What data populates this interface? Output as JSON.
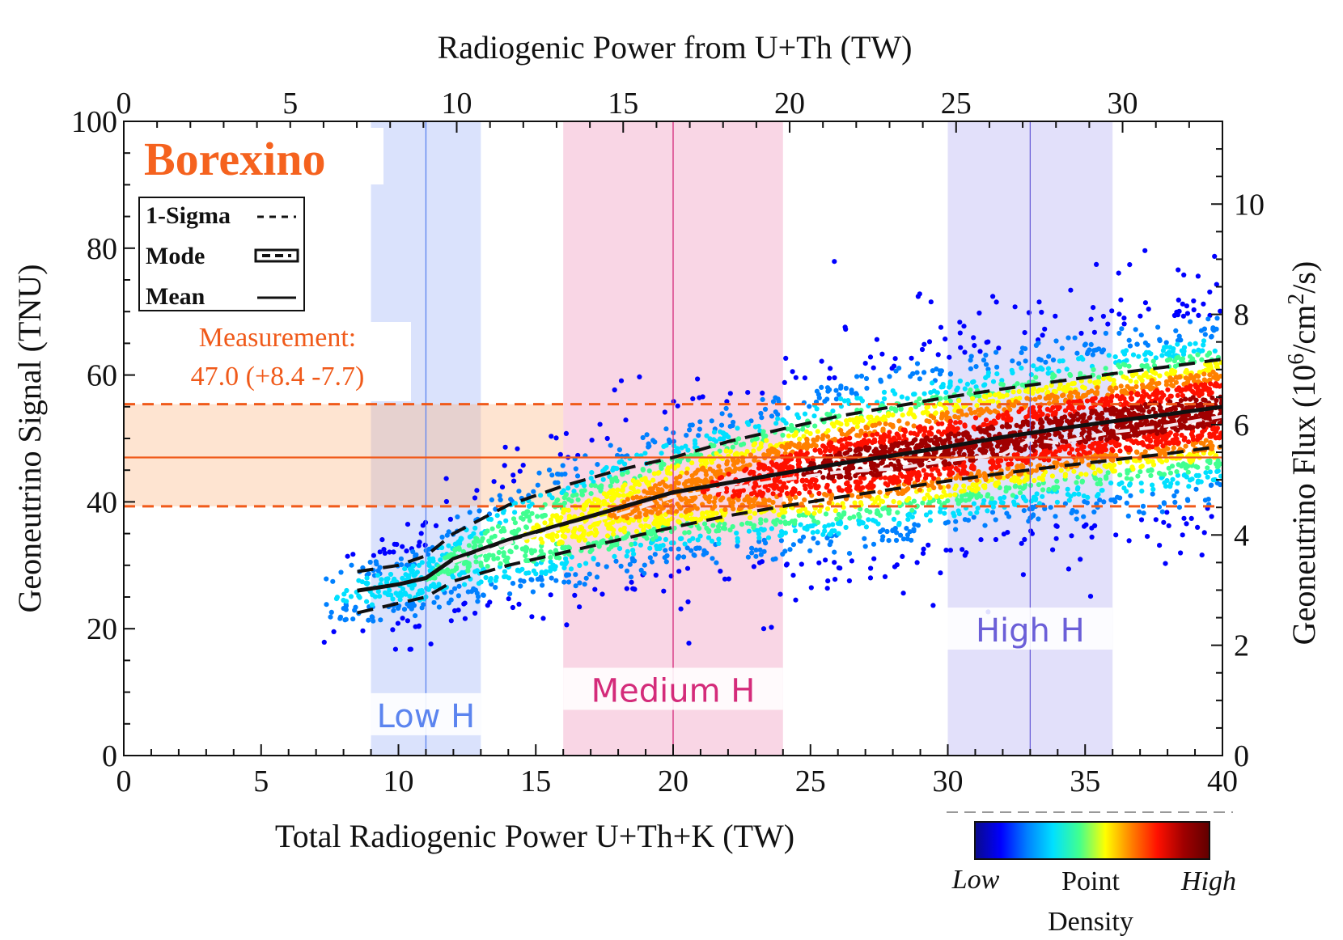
{
  "chart_data": {
    "type": "scatter",
    "experiment": "Borexino",
    "xlabel": "Total Radiogenic Power U+Th+K (TW)",
    "x2label": "Radiogenic Power from U+Th (TW)",
    "ylabel": "Geoneutrino Signal (TNU)",
    "y2label_prefix": "Geoneutrino Flux (10",
    "y2label_sup1": "6",
    "y2label_mid": "/cm",
    "y2label_sup2": "2",
    "y2label_suffix": "/s)",
    "xlim": [
      0,
      40
    ],
    "x2lim": [
      0,
      33
    ],
    "ylim": [
      0,
      100
    ],
    "y2lim": [
      0,
      11.5
    ],
    "x_ticks": [
      0,
      5,
      10,
      15,
      20,
      25,
      30,
      35,
      40
    ],
    "x2_ticks": [
      0,
      5,
      10,
      15,
      20,
      25,
      30
    ],
    "y_ticks": [
      0,
      20,
      40,
      60,
      80,
      100
    ],
    "y2_ticks": [
      0,
      2,
      4,
      6,
      8,
      10
    ],
    "legend": {
      "sigma_label": "1-Sigma",
      "mode_label": "Mode",
      "mean_label": "Mean"
    },
    "measurement": {
      "label": "Measurement:",
      "value_text": "47.0 (+8.4 -7.7)",
      "value": 47.0,
      "upper": 55.4,
      "lower": 39.3
    },
    "bands": [
      {
        "name": "Low H",
        "x_min": 9,
        "x_max": 13,
        "center": 11,
        "color": "#6f8ff5",
        "text_color": "#5b84ef",
        "label_y": 5.5
      },
      {
        "name": "Medium H",
        "x_min": 16,
        "x_max": 24,
        "center": 20,
        "color": "#e8609a",
        "text_color": "#d42b7a",
        "label_y": 9.5
      },
      {
        "name": "High H",
        "x_min": 30,
        "x_max": 36,
        "center": 33,
        "color": "#8f86ea",
        "text_color": "#6b5fd8",
        "label_y": 19
      }
    ],
    "mean_curve": {
      "x": [
        8.5,
        10,
        11,
        12,
        14,
        16,
        18,
        20,
        22,
        24,
        26,
        28,
        30,
        32,
        34,
        36,
        38,
        40
      ],
      "y": [
        26,
        27,
        28,
        31,
        34,
        36.5,
        39,
        41.5,
        43,
        44.5,
        46,
        47.3,
        48.7,
        50.2,
        51.5,
        52.7,
        53.8,
        55
      ]
    },
    "mode_curve": {
      "x": [
        12,
        14,
        16,
        18,
        20,
        22,
        24,
        26,
        28,
        30,
        32,
        33,
        34,
        36,
        38,
        40
      ],
      "y": [
        30.5,
        33.5,
        36,
        38,
        40.8,
        42,
        43.5,
        44.7,
        45.2,
        46.5,
        47.5,
        49.8,
        49.3,
        51,
        52,
        53.5
      ]
    },
    "sigma_upper": {
      "x": [
        8.5,
        10,
        11,
        12,
        14,
        16,
        18,
        20,
        22,
        24,
        26,
        28,
        30,
        32,
        34,
        36,
        38,
        40
      ],
      "y": [
        29,
        30,
        31.5,
        35,
        39.5,
        42.5,
        45,
        47,
        49.5,
        51.5,
        53.5,
        55,
        56.5,
        57.8,
        59,
        60.2,
        61.3,
        62.5
      ]
    },
    "sigma_lower": {
      "x": [
        8.5,
        10,
        11,
        12,
        14,
        16,
        18,
        20,
        22,
        24,
        26,
        28,
        30,
        32,
        34,
        36,
        38,
        40
      ],
      "y": [
        22.5,
        24,
        25,
        27.5,
        30,
        32,
        34,
        36,
        37.8,
        39.3,
        40.7,
        42,
        43.3,
        44.5,
        45.6,
        46.6,
        47.6,
        48.8
      ]
    },
    "colorbar": {
      "low_label": "Low",
      "mid_label_1": "Point",
      "mid_label_2": "Density",
      "high_label": "High",
      "colors": [
        "#0a0a8a",
        "#0000ff",
        "#0080ff",
        "#00e0ff",
        "#40ff90",
        "#ffff00",
        "#ff8000",
        "#ff1000",
        "#a00000",
        "#600000"
      ]
    }
  }
}
